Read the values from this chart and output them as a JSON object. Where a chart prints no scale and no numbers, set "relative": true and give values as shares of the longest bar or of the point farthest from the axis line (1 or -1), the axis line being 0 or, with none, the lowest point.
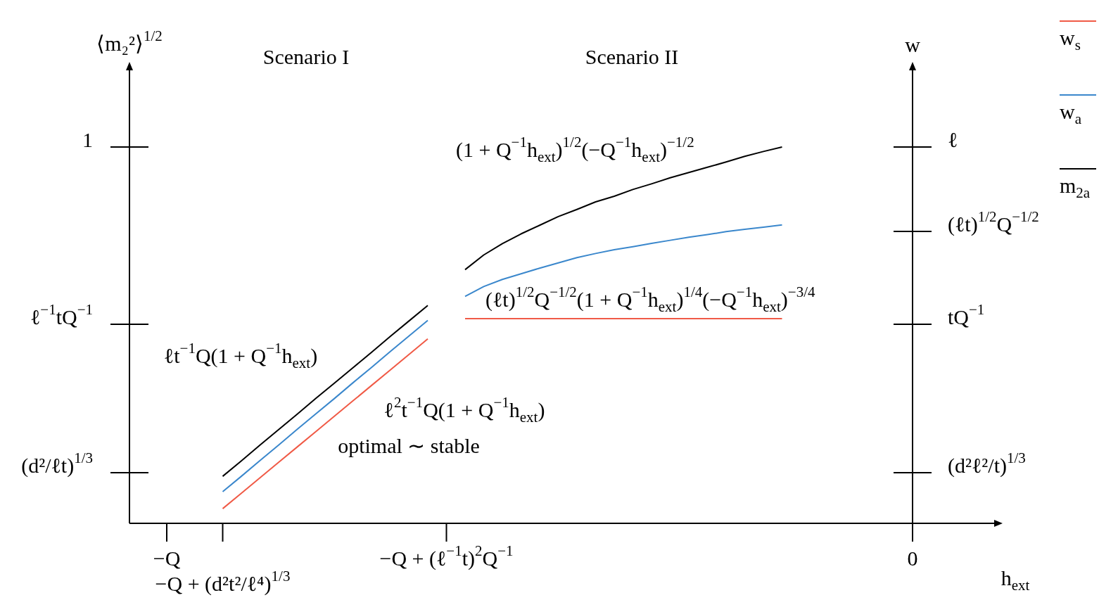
{
  "chart_data": {
    "type": "line",
    "xlabel": "h$_{ext}$",
    "ylabel": "⟨m₂²⟩$^{1/2}$",
    "y2label": "w",
    "relative": true,
    "categories": [
      null,
      null,
      "−Q",
      null,
      null,
      "−Q + (d²t²/ℓ⁴)$^{1/3}$",
      null,
      null,
      null,
      null,
      null,
      null,
      null,
      null,
      null,
      null,
      null,
      "−Q + (ℓ$^{−1}$t)$^{2}$Q$^{−1}$",
      null,
      null,
      null,
      null,
      null,
      null,
      null,
      null,
      null,
      null,
      null,
      null,
      null,
      null,
      null,
      null,
      null,
      null,
      null,
      null,
      null,
      null,
      null,
      null,
      "0",
      null,
      null,
      null,
      null
    ],
    "legend": "top right",
    "marker": "none",
    "series": [
      {
        "name": "w$_{s}$",
        "color": "#f05a46",
        "values": [
          null,
          null,
          null,
          null,
          null,
          0.039,
          0.08,
          0.121,
          0.162,
          0.203,
          0.244,
          0.285,
          0.326,
          0.367,
          0.408,
          0.449,
          0.49,
          null,
          0.544,
          0.544,
          0.544,
          0.544,
          0.544,
          0.544,
          0.544,
          0.544,
          0.544,
          0.544,
          0.544,
          0.544,
          0.544,
          0.544,
          0.544,
          0.544,
          0.544,
          0.544,
          null,
          null,
          null,
          null,
          null,
          null,
          null,
          null,
          null,
          null,
          null
        ]
      },
      {
        "name": "w$_{a}$",
        "color": "#3a87cc",
        "values": [
          null,
          null,
          null,
          null,
          null,
          0.084,
          0.125,
          0.167,
          0.208,
          0.25,
          0.291,
          0.332,
          0.374,
          0.415,
          0.457,
          0.498,
          0.539,
          null,
          0.603,
          0.629,
          0.648,
          0.663,
          0.678,
          0.692,
          0.706,
          0.717,
          0.727,
          0.735,
          0.744,
          0.752,
          0.76,
          0.767,
          0.775,
          0.781,
          0.787,
          0.793,
          null,
          null,
          null,
          null,
          null,
          null,
          null,
          null,
          null,
          null,
          null
        ]
      },
      {
        "name": "m$_{2a}$",
        "color": "#000000",
        "values": [
          null,
          null,
          null,
          null,
          null,
          0.125,
          0.166,
          0.208,
          0.249,
          0.29,
          0.332,
          0.373,
          0.414,
          0.455,
          0.497,
          0.538,
          0.579,
          null,
          0.674,
          0.713,
          0.743,
          0.769,
          0.792,
          0.815,
          0.834,
          0.854,
          0.869,
          0.887,
          0.902,
          0.918,
          0.932,
          0.946,
          0.96,
          0.975,
          0.988,
          1,
          null,
          null,
          null,
          null,
          null,
          null,
          null,
          null,
          null,
          null,
          null
        ]
      }
    ],
    "annotations": [
      "Scenario I",
      "Scenario II",
      "(1 + Q$^{−1}$h$_{ext}$)$^{1/2}$(−Q$^{−1}$h$_{ext}$)$^{−1/2}$",
      "(ℓt)$^{1/2}$Q$^{−1/2}$(1 + Q$^{−1}$h$_{ext}$)$^{1/4}$(−Q$^{−1}$h$_{ext}$)$^{−3/4}$",
      "ℓt$^{−1}$Q(1 + Q$^{−1}$h$_{ext}$)",
      "ℓ$^{2}$t$^{−1}$Q(1 + Q$^{−1}$h$_{ext}$)",
      "optimal ∼ stable",
      "(d²/ℓt)$^{1/3}$",
      "ℓ$^{−1}$tQ$^{−1}$",
      "1",
      "(d²ℓ²/t)$^{1/3}$",
      "tQ$^{−1}$",
      "(ℓt)$^{1/2}$Q$^{−1/2}$",
      "ℓ"
    ]
  }
}
